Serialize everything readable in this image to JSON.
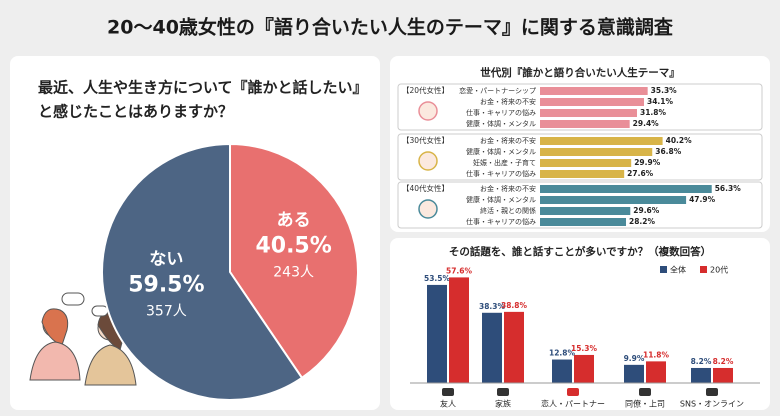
{
  "title": "20〜40歳女性の『語り合いたい人生のテーマ』に関する意識調査",
  "chart_data": [
    {
      "type": "pie",
      "title": [
        "最近、人生や生き方について『誰かと話したい』",
        "と感じたことはありますか？"
      ],
      "categories": [
        "ある",
        "ない"
      ],
      "values": [
        40.5,
        59.5
      ],
      "value_labels": [
        "40.5%",
        "59.5%"
      ],
      "count_labels": [
        "243人",
        "357人"
      ],
      "colors": [
        "#e8706f",
        "#4d6584"
      ]
    },
    {
      "type": "hbar",
      "title": "世代別『誰かと語り合いたい人生テーマ』",
      "xlim": [
        0,
        60
      ],
      "groups": [
        {
          "name": "【20代女性】",
          "color": "#e98f98",
          "categories": [
            "恋愛・パートナーシップ",
            "お金・将来の不安",
            "仕事・キャリアの悩み",
            "健康・体調・メンタル"
          ],
          "values": [
            35.3,
            34.1,
            31.8,
            29.4
          ],
          "value_labels": [
            "35.3%",
            "34.1%",
            "31.8%",
            "29.4%"
          ]
        },
        {
          "name": "【30代女性】",
          "color": "#d8b448",
          "categories": [
            "お金・将来の不安",
            "健康・体調・メンタル",
            "妊娠・出産・子育て",
            "仕事・キャリアの悩み"
          ],
          "values": [
            40.2,
            36.8,
            29.9,
            27.6
          ],
          "value_labels": [
            "40.2%",
            "36.8%",
            "29.9%",
            "27.6%"
          ]
        },
        {
          "name": "【40代女性】",
          "color": "#4a8a9a",
          "categories": [
            "お金・将来の不安",
            "健康・体調・メンタル",
            "終活・親との関係",
            "仕事・キャリアの悩み"
          ],
          "values": [
            56.3,
            47.9,
            29.6,
            28.2
          ],
          "value_labels": [
            "56.3%",
            "47.9%",
            "29.6%",
            "28.2%"
          ]
        }
      ]
    },
    {
      "type": "grouped_bar",
      "title": "その話題を、誰と話すことが多いですか？（複数回答）",
      "ylim": [
        0,
        60
      ],
      "legend": "top-right",
      "categories": [
        "友人",
        "家族",
        "恋人・パートナー",
        "同僚・上司",
        "SNS・オンライン"
      ],
      "series": [
        {
          "name": "全体",
          "color": "#2e4d7a",
          "values": [
            53.5,
            38.3,
            12.8,
            9.9,
            8.2
          ],
          "value_labels": [
            "53.5%",
            "38.3%",
            "12.8%",
            "9.9%",
            "8.2%"
          ]
        },
        {
          "name": "20代",
          "color": "#d62d2d",
          "values": [
            57.6,
            38.8,
            15.3,
            11.8,
            8.2
          ],
          "value_labels": [
            "57.6%",
            "38.8%",
            "15.3%",
            "11.8%",
            "8.2%"
          ]
        }
      ]
    }
  ]
}
